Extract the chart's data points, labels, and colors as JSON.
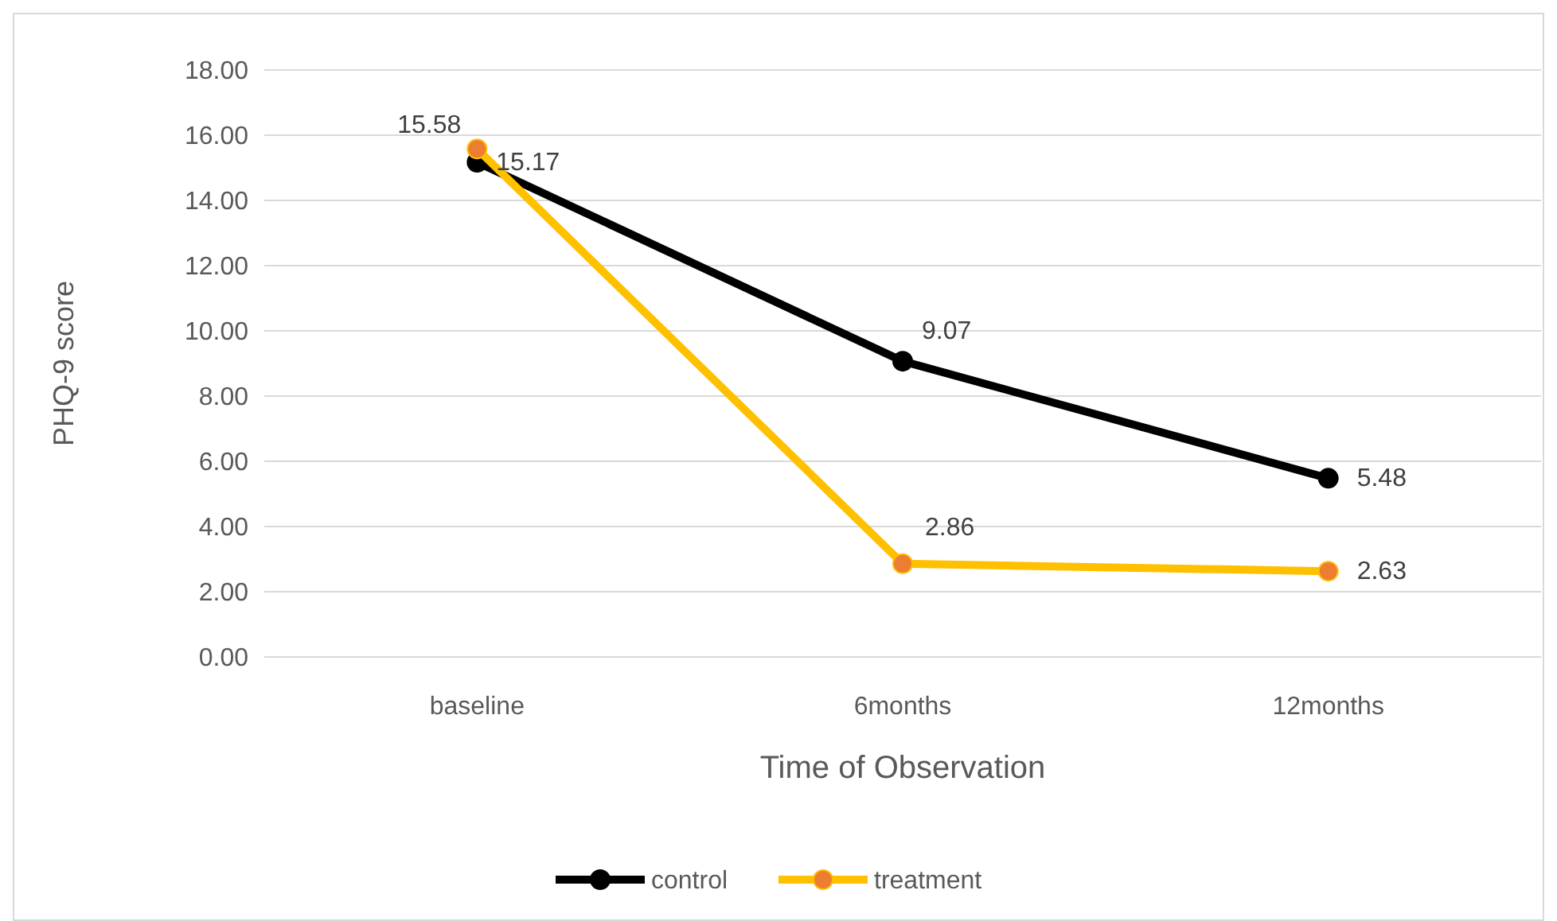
{
  "chart_data": {
    "type": "line",
    "xlabel": "Time of Observation",
    "ylabel": "PHQ-9  score",
    "categories": [
      "baseline",
      "6months",
      "12months"
    ],
    "series": [
      {
        "name": "control",
        "color": "#000000",
        "values": [
          15.17,
          9.07,
          5.48
        ]
      },
      {
        "name": "treatment",
        "color": "#ffc000",
        "colors": [
          "#ed7d31",
          "#ed7d31",
          "#ed7d31"
        ],
        "values": [
          15.58,
          2.86,
          2.63
        ]
      }
    ],
    "ylim": [
      0,
      18
    ],
    "yticks": [
      {
        "value": 0,
        "label": "0.00"
      },
      {
        "value": 2,
        "label": "2.00"
      },
      {
        "value": 4,
        "label": "4.00"
      },
      {
        "value": 6,
        "label": "6.00"
      },
      {
        "value": 8,
        "label": "8.00"
      },
      {
        "value": 10,
        "label": "10.00"
      },
      {
        "value": 12,
        "label": "12.00"
      },
      {
        "value": 14,
        "label": "14.00"
      },
      {
        "value": 16,
        "label": "16.00"
      },
      {
        "value": 18,
        "label": "18.00"
      }
    ],
    "grid": "y",
    "legend": "bottom",
    "marker": "circle",
    "line_style": "solid",
    "data_labels": true
  }
}
